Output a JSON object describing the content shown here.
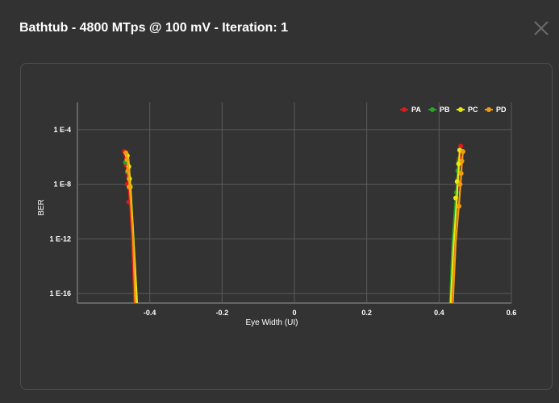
{
  "dialog": {
    "title": "Bathtub - 4800 MTps @ 100 mV - Iteration: 1",
    "close_icon": "close-icon"
  },
  "chart_data": {
    "type": "line",
    "title": "",
    "xlabel": "Eye Width (UI)",
    "ylabel": "BER",
    "x_ticks": [
      "-0.4",
      "-0.2",
      "0",
      "0.2",
      "0.4",
      "0.6"
    ],
    "y_ticks": [
      "1 E-4",
      "1 E-8",
      "1 E-12",
      "1 E-16"
    ],
    "xlim": [
      -0.6,
      0.6
    ],
    "ylim_log10": [
      -16.7,
      -2.0
    ],
    "y_scale": "log",
    "grid": true,
    "legend_position": "top-right",
    "series": [
      {
        "name": "PA",
        "color": "#e01818",
        "left": [
          [
            -0.47,
            -5.6
          ],
          [
            -0.465,
            -6.6
          ],
          [
            -0.46,
            -8.0
          ],
          [
            -0.455,
            -9.3
          ],
          [
            -0.45,
            -11.5
          ],
          [
            -0.443,
            -16.7
          ]
        ],
        "right": [
          [
            0.46,
            -5.2
          ],
          [
            0.458,
            -6.0
          ],
          [
            0.455,
            -7.2
          ],
          [
            0.45,
            -8.8
          ],
          [
            0.443,
            -11.5
          ],
          [
            0.433,
            -16.7
          ]
        ],
        "points": [
          [
            -0.47,
            -5.6
          ],
          [
            -0.465,
            -6.6
          ],
          [
            -0.462,
            -8.0
          ],
          [
            -0.458,
            -9.3
          ],
          [
            0.46,
            -5.2
          ],
          [
            0.456,
            -6.1
          ],
          [
            0.452,
            -7.6
          ]
        ]
      },
      {
        "name": "PB",
        "color": "#27a327",
        "left": [
          [
            -0.465,
            -5.9
          ],
          [
            -0.46,
            -6.8
          ],
          [
            -0.455,
            -8.2
          ],
          [
            -0.45,
            -9.6
          ],
          [
            -0.445,
            -11.8
          ],
          [
            -0.438,
            -16.7
          ]
        ],
        "right": [
          [
            0.455,
            -6.0
          ],
          [
            0.452,
            -6.8
          ],
          [
            0.449,
            -8.0
          ],
          [
            0.444,
            -9.6
          ],
          [
            0.437,
            -12.2
          ],
          [
            0.43,
            -16.7
          ]
        ],
        "points": [
          [
            -0.467,
            -6.4
          ],
          [
            -0.462,
            -7.1
          ],
          [
            0.455,
            -6.3
          ],
          [
            0.452,
            -7.0
          ],
          [
            0.448,
            -8.6
          ]
        ]
      },
      {
        "name": "PC",
        "color": "#e8e810",
        "left": [
          [
            -0.46,
            -5.9
          ],
          [
            -0.458,
            -6.5
          ],
          [
            -0.455,
            -7.6
          ],
          [
            -0.452,
            -8.8
          ],
          [
            -0.445,
            -12.0
          ],
          [
            -0.435,
            -16.7
          ]
        ],
        "right": [
          [
            0.457,
            -5.5
          ],
          [
            0.455,
            -6.5
          ],
          [
            0.452,
            -7.8
          ],
          [
            0.448,
            -9.5
          ],
          [
            0.44,
            -12.5
          ],
          [
            0.432,
            -16.7
          ]
        ],
        "points": [
          [
            -0.462,
            -5.9
          ],
          [
            -0.458,
            -6.7
          ],
          [
            -0.456,
            -7.6
          ],
          [
            -0.454,
            -8.2
          ],
          [
            0.457,
            -5.5
          ],
          [
            0.454,
            -6.5
          ],
          [
            0.45,
            -7.8
          ],
          [
            0.446,
            -9.0
          ]
        ]
      },
      {
        "name": "PD",
        "color": "#f39c12",
        "left": [
          [
            -0.466,
            -5.7
          ],
          [
            -0.461,
            -6.4
          ],
          [
            -0.457,
            -7.8
          ],
          [
            -0.452,
            -9.5
          ],
          [
            -0.446,
            -12.0
          ],
          [
            -0.44,
            -16.7
          ]
        ],
        "right": [
          [
            0.466,
            -5.6
          ],
          [
            0.463,
            -6.5
          ],
          [
            0.46,
            -7.8
          ],
          [
            0.455,
            -9.5
          ],
          [
            0.446,
            -12.2
          ],
          [
            0.438,
            -16.7
          ]
        ],
        "points": [
          [
            -0.466,
            -5.7
          ],
          [
            -0.463,
            -6.2
          ],
          [
            -0.46,
            -7.0
          ],
          [
            -0.457,
            -8.2
          ],
          [
            0.466,
            -5.6
          ],
          [
            0.463,
            -6.3
          ],
          [
            0.461,
            -7.2
          ],
          [
            0.458,
            -8.0
          ],
          [
            0.455,
            -9.6
          ]
        ]
      }
    ]
  }
}
